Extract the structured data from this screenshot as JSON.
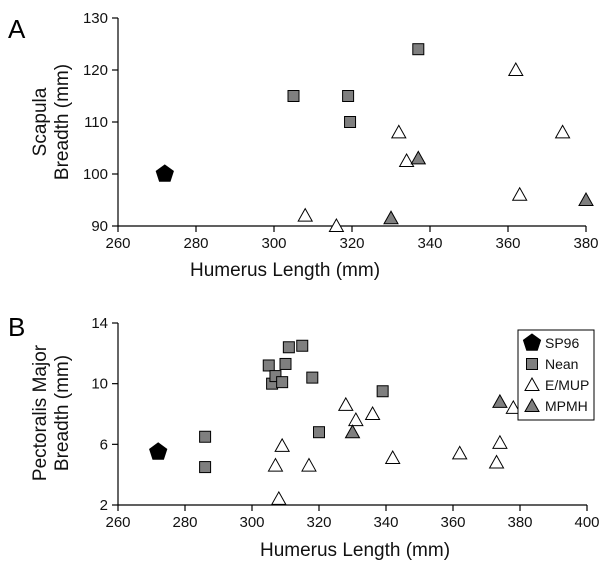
{
  "chart_data": [
    {
      "type": "scatter",
      "panel_label": "A",
      "xlabel": "Humerus Length (mm)",
      "ylabel": [
        "Scapula",
        "Breadth (mm)"
      ],
      "xlim": [
        260,
        380
      ],
      "ylim": [
        90,
        130
      ],
      "xticks": [
        260,
        280,
        300,
        320,
        340,
        360,
        380
      ],
      "yticks": [
        90,
        100,
        110,
        120,
        130
      ],
      "grid": false,
      "series": [
        {
          "name": "SP96",
          "marker": "pentagon",
          "color": "#000000",
          "points": [
            [
              272,
              100
            ]
          ]
        },
        {
          "name": "Nean",
          "marker": "square",
          "color": "#7f7f7f",
          "points": [
            [
              305,
              115
            ],
            [
              319,
              115
            ],
            [
              319.5,
              110
            ],
            [
              337,
              124
            ]
          ]
        },
        {
          "name": "E/MUP",
          "marker": "triangle",
          "color": "#ffffff",
          "points": [
            [
              308,
              92
            ],
            [
              316,
              90
            ],
            [
              332,
              108
            ],
            [
              334,
              102.5
            ],
            [
              362,
              120
            ],
            [
              363,
              96
            ],
            [
              374,
              108
            ]
          ]
        },
        {
          "name": "MPMH",
          "marker": "triangle",
          "color": "#7f7f7f",
          "points": [
            [
              330,
              91.5
            ],
            [
              337,
              103
            ],
            [
              380,
              95
            ]
          ]
        }
      ]
    },
    {
      "type": "scatter",
      "panel_label": "B",
      "xlabel": "Humerus Length (mm)",
      "ylabel": [
        "Pectoralis Major",
        "Breadth (mm)"
      ],
      "xlim": [
        260,
        400
      ],
      "ylim": [
        2,
        14
      ],
      "xticks": [
        260,
        280,
        300,
        320,
        340,
        360,
        380,
        400
      ],
      "yticks": [
        2,
        6,
        10,
        14
      ],
      "grid": false,
      "legend_position": "top-right",
      "series": [
        {
          "name": "SP96",
          "marker": "pentagon",
          "color": "#000000",
          "points": [
            [
              272,
              5.5
            ]
          ]
        },
        {
          "name": "Nean",
          "marker": "square",
          "color": "#7f7f7f",
          "points": [
            [
              286,
              6.5
            ],
            [
              286,
              4.5
            ],
            [
              305,
              11.2
            ],
            [
              306,
              10
            ],
            [
              307,
              10.5
            ],
            [
              309,
              10.1
            ],
            [
              310,
              11.3
            ],
            [
              311,
              12.4
            ],
            [
              315,
              12.5
            ],
            [
              318,
              10.4
            ],
            [
              320,
              6.8
            ],
            [
              339,
              9.5
            ]
          ]
        },
        {
          "name": "E/MUP",
          "marker": "triangle",
          "color": "#ffffff",
          "points": [
            [
              307,
              4.6
            ],
            [
              308,
              2.4
            ],
            [
              309,
              5.9
            ],
            [
              317,
              4.6
            ],
            [
              328,
              8.6
            ],
            [
              331,
              7.6
            ],
            [
              336,
              8
            ],
            [
              342,
              5.1
            ],
            [
              362,
              5.4
            ],
            [
              373,
              4.8
            ],
            [
              374,
              6.1
            ],
            [
              378,
              8.4
            ],
            [
              382,
              8.1
            ]
          ]
        },
        {
          "name": "MPMH",
          "marker": "triangle",
          "color": "#7f7f7f",
          "points": [
            [
              330,
              6.8
            ],
            [
              374,
              8.8
            ]
          ]
        }
      ]
    }
  ]
}
